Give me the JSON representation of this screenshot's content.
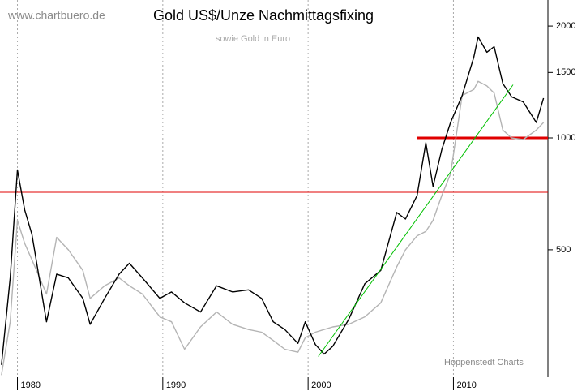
{
  "chart_data": {
    "type": "line",
    "title": "Gold US$/Unze Nachmittagsfixing",
    "subtitle": "sowie Gold in Euro",
    "source": "www.chartbuero.de",
    "credit": "Hoppenstedt Charts",
    "log_scale": true,
    "grid": true,
    "x": [
      1978.9,
      1979.5,
      1980.0,
      1980.5,
      1981.0,
      1982.0,
      1982.7,
      1983.5,
      1984.5,
      1985.0,
      1986.0,
      1987.0,
      1987.7,
      1988.6,
      1989.8,
      1990.6,
      1991.5,
      1992.6,
      1993.7,
      1994.8,
      1995.9,
      1996.8,
      1997.6,
      1998.4,
      1999.3,
      1999.8,
      2000.5,
      2001.1,
      2001.7,
      2002.8,
      2003.9,
      2005.0,
      2006.1,
      2006.7,
      2007.5,
      2008.1,
      2008.6,
      2009.2,
      2009.8,
      2010.6,
      2011.4,
      2011.7,
      2012.3,
      2012.8,
      2013.4,
      2014.0,
      2014.8,
      2015.7,
      2016.2
    ],
    "series": [
      {
        "color": "#000000",
        "values": [
          245,
          420,
          820,
          640,
          550,
          320,
          430,
          420,
          370,
          315,
          370,
          430,
          460,
          420,
          370,
          385,
          360,
          340,
          400,
          385,
          390,
          370,
          320,
          305,
          280,
          320,
          278,
          262,
          275,
          325,
          405,
          440,
          630,
          605,
          700,
          970,
          740,
          930,
          1100,
          1300,
          1650,
          1870,
          1700,
          1760,
          1400,
          1290,
          1250,
          1100,
          1280
        ]
      },
      {
        "color": "#b4b4b4",
        "values": [
          230,
          320,
          600,
          520,
          470,
          380,
          540,
          500,
          440,
          370,
          400,
          420,
          400,
          380,
          330,
          320,
          270,
          310,
          340,
          315,
          305,
          300,
          285,
          270,
          265,
          290,
          300,
          305,
          310,
          315,
          330,
          360,
          450,
          500,
          545,
          560,
          600,
          700,
          800,
          1300,
          1350,
          1420,
          1380,
          1320,
          1050,
          1000,
          990,
          1050,
          1100
        ]
      }
    ],
    "hlines": [
      {
        "value": 714,
        "color": "#e00000"
      },
      {
        "value": 1000,
        "x": [
          2007.5,
          2016.5
        ],
        "color": "#e00000"
      }
    ],
    "trendline": {
      "x": [
        2000.7,
        2014.1
      ],
      "values": [
        258,
        1390
      ],
      "color": "#00c000"
    },
    "xlim": [
      1978.8,
      2016.5
    ],
    "ylim": [
      227,
      2350
    ],
    "xticks": [
      1980,
      1990,
      2000,
      2010
    ],
    "yticks": [
      500,
      1000,
      1500,
      2000
    ]
  }
}
